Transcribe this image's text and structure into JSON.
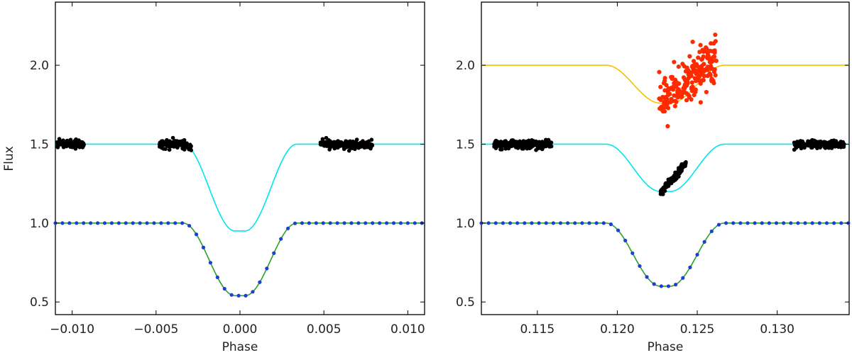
{
  "chart_data": [
    {
      "type": "scatter",
      "xlabel": "Phase",
      "ylabel": "Flux",
      "xlim": [
        -0.011,
        0.011
      ],
      "ylim": [
        0.42,
        2.4
      ],
      "xticks": [
        -0.01,
        -0.005,
        0.0,
        0.005,
        0.01
      ],
      "xtick_labels": [
        "−0.010",
        "−0.005",
        "0.000",
        "0.005",
        "0.010"
      ],
      "yticks": [
        0.5,
        1.0,
        1.5,
        2.0
      ],
      "ytick_labels": [
        "0.5",
        "1.0",
        "1.5",
        "2.0"
      ],
      "grid": false,
      "series": [
        {
          "kind": "model-line",
          "color": "#00e5ee",
          "baseline": 1.5,
          "depth": 0.55,
          "center": 0.0,
          "t14": 0.0068,
          "t23": 0.0006
        },
        {
          "kind": "model-line",
          "color": "#2ca02c",
          "baseline": 1.0,
          "depth": 0.46,
          "center": 0.0,
          "t14": 0.0068,
          "t23": 0.0006
        },
        {
          "kind": "model-points",
          "color": "#1f3fd1",
          "step": 0.00042
        },
        {
          "kind": "observed",
          "color": "#000000",
          "ranges": [
            [
              -0.0109,
              -0.0093
            ],
            [
              -0.0048,
              -0.0029
            ],
            [
              0.0048,
              0.0079
            ]
          ],
          "noise": 0.012
        }
      ]
    },
    {
      "type": "scatter",
      "xlabel": "Phase",
      "ylabel": "",
      "xlim": [
        0.1115,
        0.1345
      ],
      "ylim": [
        0.42,
        2.4
      ],
      "xticks": [
        0.115,
        0.12,
        0.125,
        0.13
      ],
      "xtick_labels": [
        "0.115",
        "0.120",
        "0.125",
        "0.130"
      ],
      "yticks": [
        0.5,
        1.0,
        1.5,
        2.0
      ],
      "ytick_labels": [
        "0.5",
        "1.0",
        "1.5",
        "2.0"
      ],
      "grid": false,
      "series": [
        {
          "kind": "model-line",
          "color": "#f2c200",
          "baseline": 2.0,
          "depth": 0.24,
          "center": 0.123,
          "t14": 0.0074,
          "t23": 0.0006
        },
        {
          "kind": "observed",
          "color": "#ff2a00",
          "ranges": [
            [
              0.1226,
              0.1262
            ]
          ],
          "noise": 0.07,
          "trend": [
            1.76,
            2.04
          ]
        },
        {
          "kind": "model-line",
          "color": "#00e5ee",
          "baseline": 1.5,
          "depth": 0.3,
          "center": 0.123,
          "t14": 0.0074,
          "t23": 0.0006
        },
        {
          "kind": "observed",
          "color": "#000000",
          "ranges": [
            [
              0.1123,
              0.1159
            ],
            [
              0.1227,
              0.1243
            ],
            [
              0.131,
              0.1342
            ]
          ],
          "noise": 0.013,
          "trend_segment": [
            [
              0.1227,
              1.19
            ],
            [
              0.1243,
              1.38
            ]
          ]
        },
        {
          "kind": "model-line",
          "color": "#2ca02c",
          "baseline": 1.0,
          "depth": 0.4,
          "center": 0.123,
          "t14": 0.0074,
          "t23": 0.0006
        },
        {
          "kind": "model-points",
          "color": "#1f3fd1",
          "step": 0.00045
        }
      ]
    }
  ]
}
